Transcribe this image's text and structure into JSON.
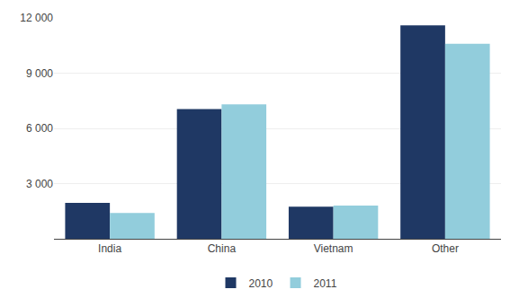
{
  "chart_data": {
    "type": "bar",
    "categories": [
      "India",
      "China",
      "Vietnam",
      "Other"
    ],
    "series": [
      {
        "name": "2010",
        "color": "#1F3864",
        "values": [
          1950,
          7050,
          1750,
          11600
        ]
      },
      {
        "name": "2011",
        "color": "#92CDDC",
        "values": [
          1400,
          7300,
          1800,
          10600
        ]
      }
    ],
    "ylim": [
      0,
      12000
    ],
    "yticks": [
      {
        "value": 3000,
        "label": "3 000"
      },
      {
        "value": 6000,
        "label": "6 000"
      },
      {
        "value": 9000,
        "label": "9 000"
      },
      {
        "value": 12000,
        "label": "12 000"
      }
    ],
    "grid": true,
    "legend": "bottom"
  }
}
